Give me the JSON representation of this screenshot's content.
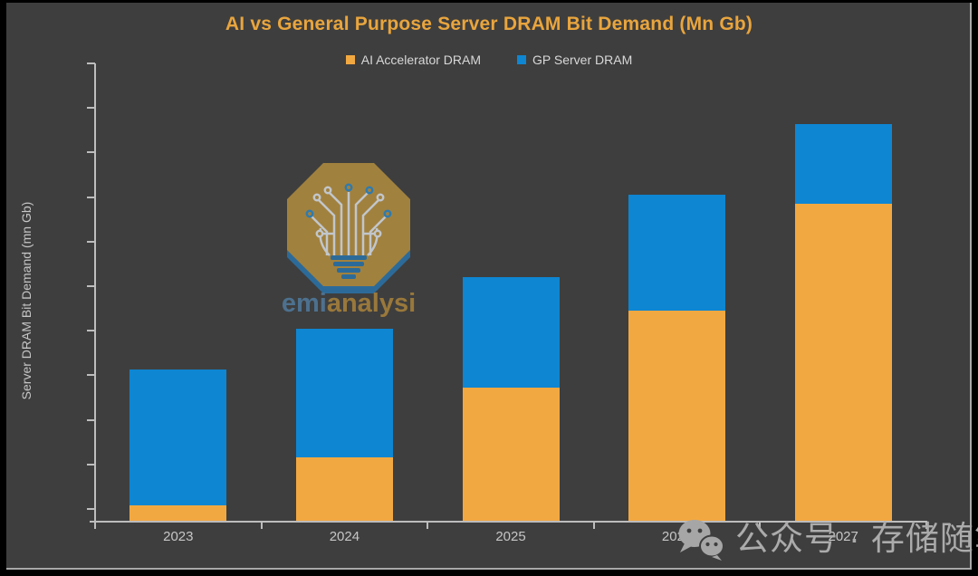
{
  "page": {
    "background": "#000000"
  },
  "frame": {
    "background": "#3E3E3E",
    "border_color": "#A9A9A9"
  },
  "title": {
    "text": "AI vs General Purpose Server DRAM Bit Demand (Mn Gb)",
    "color": "#E9A53D"
  },
  "legend": {
    "items": [
      {
        "label": "AI Accelerator DRAM",
        "color": "#F2A841"
      },
      {
        "label": "GP Server DRAM",
        "color": "#0E86D2"
      }
    ]
  },
  "y_axis": {
    "label": "Server DRAM Bit Demand (mn Gb)",
    "tick_count": 11,
    "line_color": "#BDBDBD",
    "tick_labels_shown": false
  },
  "x_axis": {
    "tick_count": 6
  },
  "chart_data": {
    "type": "bar",
    "stacked": true,
    "categories": [
      "2023",
      "2024",
      "2025",
      "2026",
      "2027"
    ],
    "series": [
      {
        "name": "AI Accelerator DRAM",
        "color": "#F2A841",
        "values": [
          3.4,
          13.9,
          29.1,
          45.9,
          69.3
        ]
      },
      {
        "name": "GP Server DRAM",
        "color": "#0E86D2",
        "values": [
          29.7,
          28.1,
          24.2,
          25.4,
          17.4
        ]
      }
    ],
    "title": "AI vs General Purpose Server DRAM Bit Demand (Mn Gb)",
    "xlabel": "",
    "ylabel": "Server DRAM Bit Demand (mn Gb)",
    "ylim": [
      0,
      100
    ],
    "grid": false,
    "legend_position": "top"
  },
  "watermarks": {
    "logo": {
      "text_semi": "semi",
      "text_analysis": "analysis",
      "semi_color": "#4E7494",
      "analysis_color": "#9E7C3B",
      "octagon_color": "#A7853E",
      "shadow_color": "#2C6E9E",
      "circuit_color": "#C9CED3",
      "node_blue": "#2F7FB5"
    },
    "wechat": {
      "text": "公众号 · 存储随笔",
      "color": "#ABABAB"
    }
  }
}
